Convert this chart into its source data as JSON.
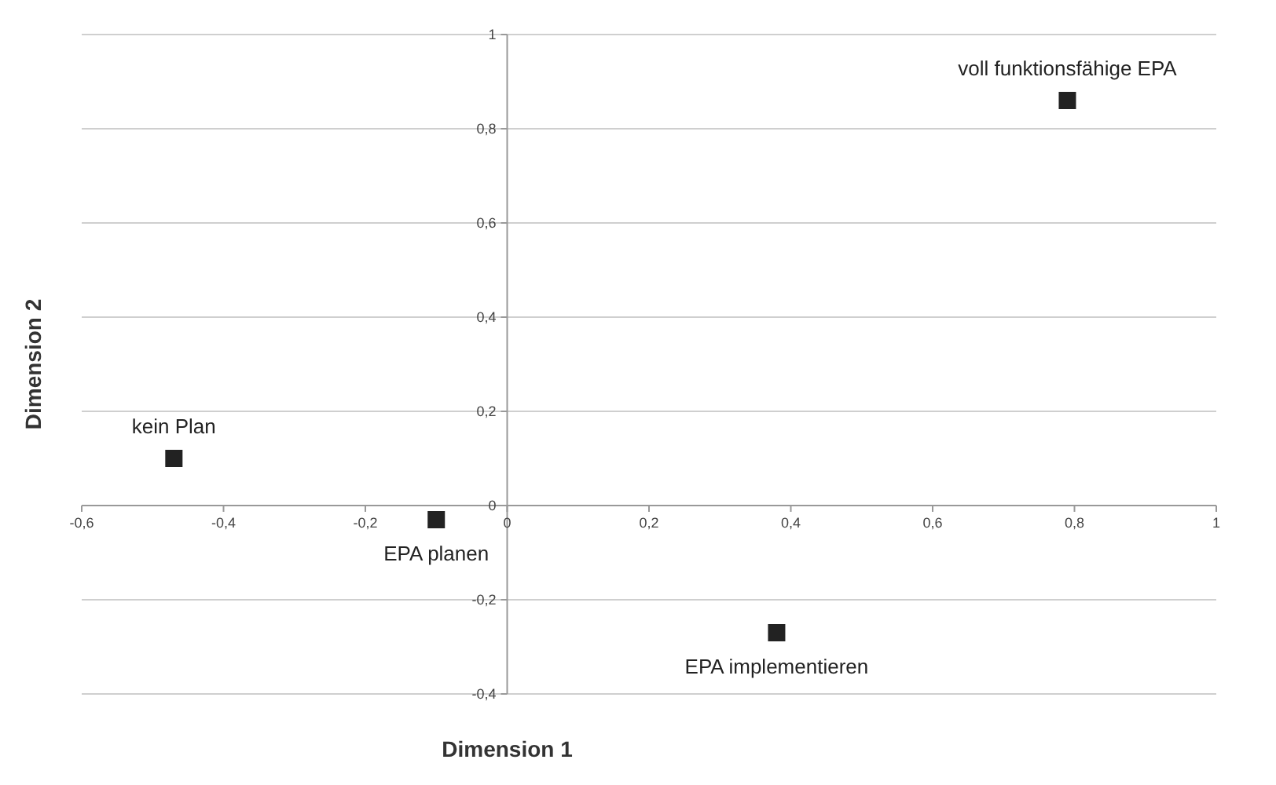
{
  "chart_data": {
    "type": "scatter",
    "xlabel": "Dimension 1",
    "ylabel": "Dimension 2",
    "x": [
      -0.47,
      -0.1,
      0.38,
      0.79
    ],
    "series": [
      {
        "color": "#222222",
        "values": [
          0.1,
          -0.03,
          -0.27,
          0.86
        ]
      }
    ],
    "annotations": [
      {
        "text": "kein Plan",
        "x": -0.47,
        "y": 0.1
      },
      {
        "text": "EPA planen",
        "x": -0.1,
        "y": -0.03
      },
      {
        "text": "EPA implementieren",
        "x": 0.38,
        "y": -0.27
      },
      {
        "text": "voll funktionsfähige EPA",
        "x": 0.79,
        "y": 0.86
      }
    ],
    "xlim": [
      -0.6,
      1
    ],
    "ylim": [
      -0.4,
      1
    ],
    "xticks": [
      {
        "value": -0.6,
        "label": "-0,6"
      },
      {
        "value": -0.4,
        "label": "-0,4"
      },
      {
        "value": -0.2,
        "label": "-0,2"
      },
      0,
      {
        "value": 0.2,
        "label": "0,2"
      },
      {
        "value": 0.4,
        "label": "0,4"
      },
      {
        "value": 0.6,
        "label": "0,6"
      },
      {
        "value": 0.8,
        "label": "0,8"
      },
      1
    ],
    "yticks": [
      {
        "value": -0.4,
        "label": "-0,4"
      },
      {
        "value": -0.2,
        "label": "-0,2"
      },
      0,
      {
        "value": 0.2,
        "label": "0,2"
      },
      {
        "value": 0.4,
        "label": "0,4"
      },
      {
        "value": 0.6,
        "label": "0,6"
      },
      {
        "value": 0.8,
        "label": "0,8"
      },
      1
    ],
    "grid": "y",
    "marker": "square"
  }
}
